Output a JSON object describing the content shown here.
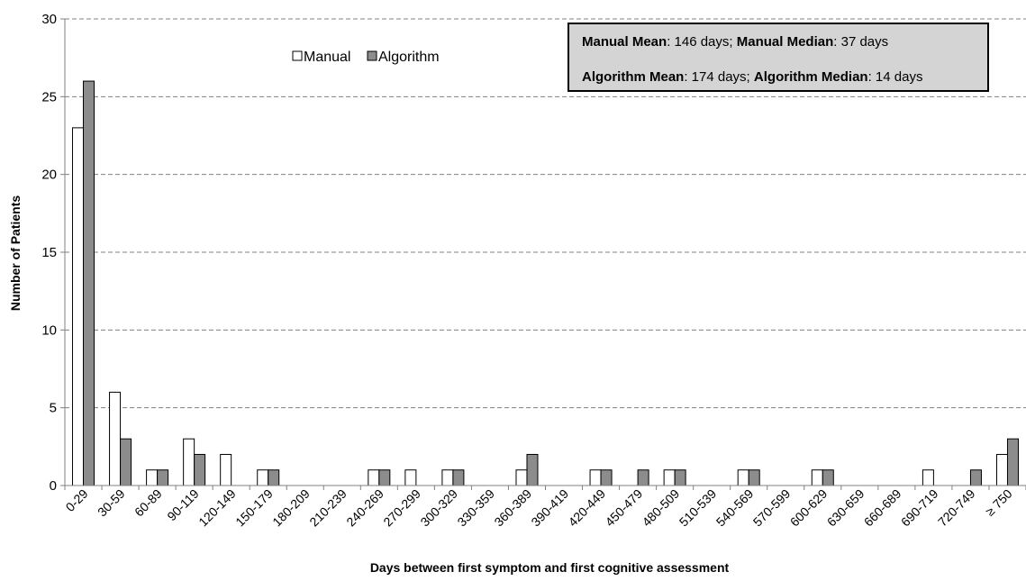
{
  "chart_data": {
    "type": "bar",
    "title": "",
    "xlabel": "Days between first symptom and first cognitive assessment",
    "ylabel": "Number of Patients",
    "ylim": [
      0,
      30
    ],
    "yticks": [
      0,
      5,
      10,
      15,
      20,
      25,
      30
    ],
    "grid": true,
    "legend_position": "top-center",
    "categories": [
      "0-29",
      "30-59",
      "60-89",
      "90-119",
      "120-149",
      "150-179",
      "180-209",
      "210-239",
      "240-269",
      "270-299",
      "300-329",
      "330-359",
      "360-389",
      "390-419",
      "420-449",
      "450-479",
      "480-509",
      "510-539",
      "540-569",
      "570-599",
      "600-629",
      "630-659",
      "660-689",
      "690-719",
      "720-749",
      "≥ 750"
    ],
    "series": [
      {
        "name": "Manual",
        "color": "#ffffff",
        "values": [
          23,
          6,
          1,
          3,
          2,
          1,
          0,
          0,
          1,
          1,
          1,
          0,
          1,
          0,
          1,
          0,
          1,
          0,
          1,
          0,
          1,
          0,
          0,
          1,
          0,
          2
        ]
      },
      {
        "name": "Algorithm",
        "color": "#8c8c8c",
        "values": [
          26,
          3,
          1,
          2,
          0,
          1,
          0,
          0,
          1,
          0,
          1,
          0,
          2,
          0,
          1,
          1,
          1,
          0,
          1,
          0,
          1,
          0,
          0,
          0,
          1,
          3
        ]
      }
    ],
    "stats_box": {
      "line1": [
        {
          "text": "Manual Mean",
          "bold": true
        },
        {
          "text": ": 146 days; ",
          "bold": false
        },
        {
          "text": "Manual Median",
          "bold": true
        },
        {
          "text": ": 37 days",
          "bold": false
        }
      ],
      "line2": [
        {
          "text": "Algorithm Mean",
          "bold": true
        },
        {
          "text": ": 174 days; ",
          "bold": false
        },
        {
          "text": "Algorithm Median",
          "bold": true
        },
        {
          "text": ": 14 days",
          "bold": false
        }
      ]
    }
  }
}
